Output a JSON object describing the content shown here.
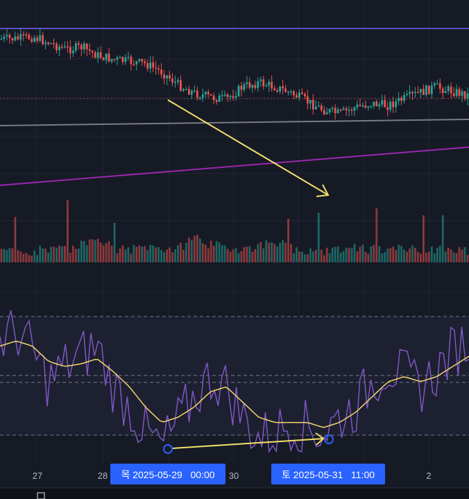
{
  "colors": {
    "background": "#161a25",
    "grid": "#232734",
    "up": "#26a69a",
    "down": "#ef5350",
    "resistance": "#5b4bc4",
    "trendline": "#9c27b0",
    "gray_line": "#7a7d86",
    "support_dotted": "#a0453f",
    "arrow": "#f5e26b",
    "rsi": "#7e57c2",
    "rsi_ma": "#f5d76e",
    "band": "#1f2233",
    "band_line": "#787b86",
    "crosshair_bg": "#2962ff",
    "marker": "#2962ff"
  },
  "x_axis": {
    "ticks": [
      "27",
      "28",
      "29",
      "30",
      "31",
      "2"
    ],
    "crosshair_labels": [
      "목 2025-05-29   00:00",
      "토 2025-05-31   11:00"
    ]
  },
  "chart_data": [
    {
      "type": "candlestick",
      "panel": "price",
      "series": [
        {
          "name": "price",
          "close_path": [
            78,
            78,
            79,
            76,
            73,
            74,
            70,
            68,
            67,
            66,
            62,
            56,
            52,
            50,
            49,
            55,
            57,
            55,
            52,
            48,
            44,
            42,
            45,
            47,
            46,
            49,
            52,
            55,
            53,
            51
          ]
        }
      ],
      "overlays": [
        "resistance-line",
        "rising-trendline",
        "gray-level",
        "dotted-level",
        "divergence-arrow"
      ],
      "grid": true
    },
    {
      "type": "bar",
      "panel": "volume",
      "series": [
        {
          "name": "volume",
          "values": [
            20,
            25,
            18,
            30,
            22,
            45,
            60,
            28,
            24,
            35,
            30,
            26,
            70,
            40,
            32,
            28,
            36,
            55,
            30,
            25,
            22,
            28,
            34,
            26,
            24,
            30,
            28,
            22,
            26,
            24
          ]
        }
      ]
    },
    {
      "type": "line",
      "panel": "oscillator",
      "series": [
        {
          "name": "rsi",
          "values": [
            66,
            70,
            62,
            50,
            56,
            60,
            64,
            48,
            40,
            30,
            24,
            34,
            44,
            52,
            48,
            36,
            28,
            30,
            34,
            32,
            30,
            36,
            40,
            50,
            56,
            52,
            48,
            54,
            62,
            66
          ]
        },
        {
          "name": "rsi-ma",
          "values": [
            64,
            66,
            64,
            58,
            56,
            57,
            59,
            54,
            48,
            40,
            34,
            36,
            40,
            46,
            48,
            42,
            36,
            34,
            34,
            34,
            32,
            34,
            38,
            44,
            50,
            52,
            50,
            52,
            56,
            60
          ]
        }
      ],
      "levels": [
        70,
        50,
        30
      ],
      "ylim": [
        20,
        80
      ]
    }
  ]
}
